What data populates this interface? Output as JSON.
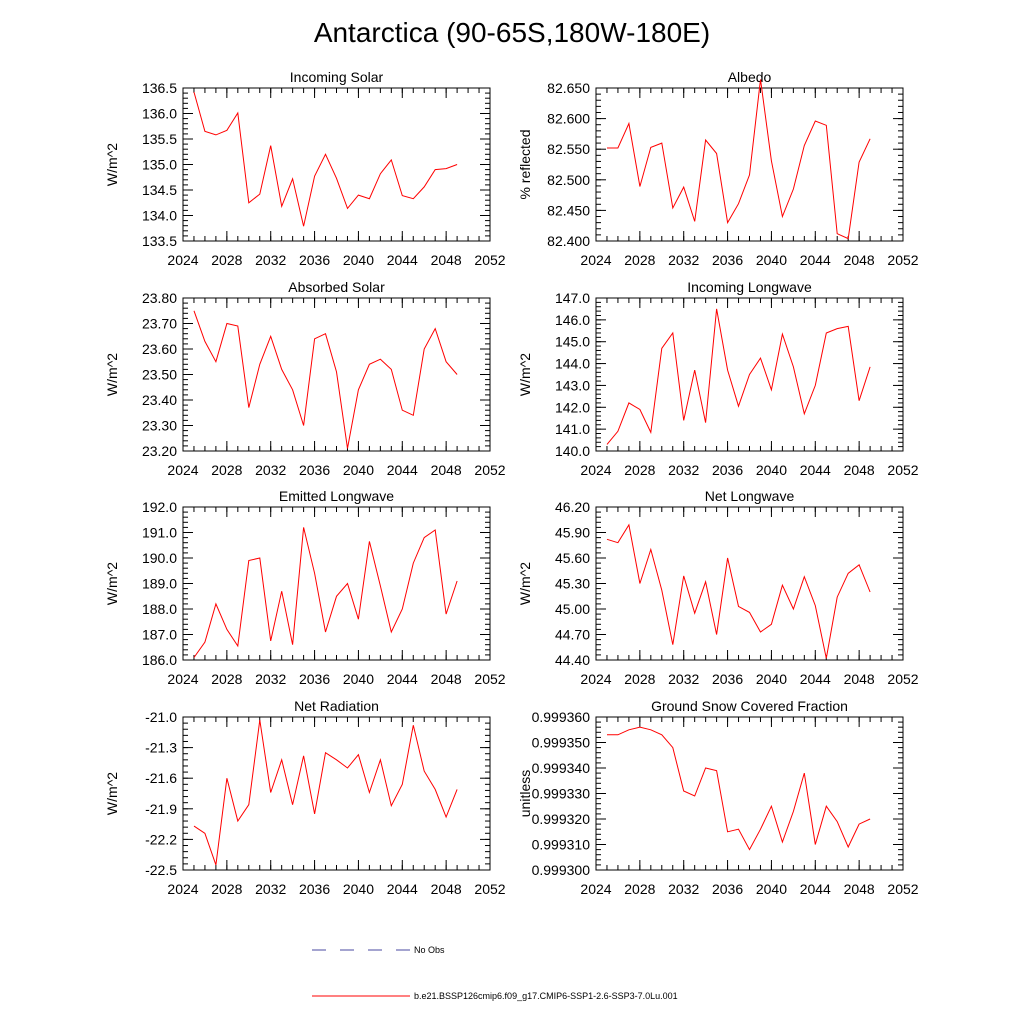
{
  "title": "Antarctica (90-65S,180W-180E)",
  "legend": {
    "obs_label": "No Obs",
    "obs_color": "#4a4aa0",
    "model_label": "b.e21.BSSP126cmip6.f09_g17.CMIP6-SSP1-2.6-SSP3-7.0Lu.001",
    "model_color": "#ff0000"
  },
  "chart_data": [
    {
      "type": "line",
      "title": "Incoming Solar",
      "ylabel": "W/m^2",
      "xlim": [
        2024,
        2052
      ],
      "xticks": [
        "2024",
        "2028",
        "2032",
        "2036",
        "2040",
        "2044",
        "2048",
        "2052"
      ],
      "ylim": [
        133.5,
        136.5
      ],
      "yticks": [
        "133.5",
        "134.0",
        "134.5",
        "135.0",
        "135.5",
        "136.0",
        "136.5"
      ],
      "yminor": 0.1,
      "x": [
        2025,
        2026,
        2027,
        2028,
        2029,
        2030,
        2031,
        2032,
        2033,
        2034,
        2035,
        2036,
        2037,
        2038,
        2039,
        2040,
        2041,
        2042,
        2043,
        2044,
        2045,
        2046,
        2047,
        2048,
        2049
      ],
      "values": [
        136.42,
        135.65,
        135.58,
        135.67,
        136.01,
        134.25,
        134.42,
        135.37,
        134.18,
        134.72,
        133.79,
        134.77,
        135.2,
        134.73,
        134.14,
        134.4,
        134.33,
        134.82,
        135.09,
        134.39,
        134.33,
        134.56,
        134.9,
        134.92,
        135.0
      ]
    },
    {
      "type": "line",
      "title": "Albedo",
      "ylabel": "% reflected",
      "xlim": [
        2024,
        2052
      ],
      "xticks": [
        "2024",
        "2028",
        "2032",
        "2036",
        "2040",
        "2044",
        "2048",
        "2052"
      ],
      "ylim": [
        82.4,
        82.65
      ],
      "yticks": [
        "82.400",
        "82.450",
        "82.500",
        "82.550",
        "82.600",
        "82.650"
      ],
      "yminor": 0.01,
      "x": [
        2025,
        2026,
        2027,
        2028,
        2029,
        2030,
        2031,
        2032,
        2033,
        2034,
        2035,
        2036,
        2037,
        2038,
        2039,
        2040,
        2041,
        2042,
        2043,
        2044,
        2045,
        2046,
        2047,
        2048,
        2049
      ],
      "values": [
        82.552,
        82.552,
        82.592,
        82.489,
        82.553,
        82.56,
        82.454,
        82.488,
        82.432,
        82.565,
        82.543,
        82.43,
        82.461,
        82.508,
        82.664,
        82.531,
        82.44,
        82.485,
        82.556,
        82.596,
        82.589,
        82.412,
        82.404,
        82.529,
        82.567
      ]
    },
    {
      "type": "line",
      "title": "Absorbed Solar",
      "ylabel": "W/m^2",
      "xlim": [
        2024,
        2052
      ],
      "xticks": [
        "2024",
        "2028",
        "2032",
        "2036",
        "2040",
        "2044",
        "2048",
        "2052"
      ],
      "ylim": [
        23.2,
        23.8
      ],
      "yticks": [
        "23.20",
        "23.30",
        "23.40",
        "23.50",
        "23.60",
        "23.70",
        "23.80"
      ],
      "yminor": 0.02,
      "x": [
        2025,
        2026,
        2027,
        2028,
        2029,
        2030,
        2031,
        2032,
        2033,
        2034,
        2035,
        2036,
        2037,
        2038,
        2039,
        2040,
        2041,
        2042,
        2043,
        2044,
        2045,
        2046,
        2047,
        2048,
        2049
      ],
      "values": [
        23.75,
        23.63,
        23.55,
        23.7,
        23.69,
        23.37,
        23.54,
        23.65,
        23.52,
        23.44,
        23.3,
        23.64,
        23.66,
        23.51,
        23.21,
        23.44,
        23.54,
        23.56,
        23.52,
        23.36,
        23.34,
        23.6,
        23.68,
        23.55,
        23.5
      ]
    },
    {
      "type": "line",
      "title": "Incoming Longwave",
      "ylabel": "W/m^2",
      "xlim": [
        2024,
        2052
      ],
      "xticks": [
        "2024",
        "2028",
        "2032",
        "2036",
        "2040",
        "2044",
        "2048",
        "2052"
      ],
      "ylim": [
        140.0,
        147.0
      ],
      "yticks": [
        "140.0",
        "141.0",
        "142.0",
        "143.0",
        "144.0",
        "145.0",
        "146.0",
        "147.0"
      ],
      "yminor": 0.2,
      "x": [
        2025,
        2026,
        2027,
        2028,
        2029,
        2030,
        2031,
        2032,
        2033,
        2034,
        2035,
        2036,
        2037,
        2038,
        2039,
        2040,
        2041,
        2042,
        2043,
        2044,
        2045,
        2046,
        2047,
        2048,
        2049
      ],
      "values": [
        140.3,
        140.9,
        142.2,
        141.9,
        140.85,
        144.7,
        145.4,
        141.4,
        143.7,
        141.3,
        146.5,
        143.7,
        142.05,
        143.5,
        144.25,
        142.8,
        145.35,
        143.85,
        141.7,
        143.0,
        145.4,
        145.6,
        145.7,
        142.3,
        143.85
      ]
    },
    {
      "type": "line",
      "title": "Emitted Longwave",
      "ylabel": "W/m^2",
      "xlim": [
        2024,
        2052
      ],
      "xticks": [
        "2024",
        "2028",
        "2032",
        "2036",
        "2040",
        "2044",
        "2048",
        "2052"
      ],
      "ylim": [
        186.0,
        192.0
      ],
      "yticks": [
        "186.0",
        "187.0",
        "188.0",
        "189.0",
        "190.0",
        "191.0",
        "192.0"
      ],
      "yminor": 0.2,
      "x": [
        2025,
        2026,
        2027,
        2028,
        2029,
        2030,
        2031,
        2032,
        2033,
        2034,
        2035,
        2036,
        2037,
        2038,
        2039,
        2040,
        2041,
        2042,
        2043,
        2044,
        2045,
        2046,
        2047,
        2048,
        2049
      ],
      "values": [
        186.1,
        186.7,
        188.2,
        187.2,
        186.55,
        189.9,
        190.0,
        186.75,
        188.7,
        186.6,
        191.2,
        189.4,
        187.1,
        188.5,
        189.0,
        187.6,
        190.65,
        188.9,
        187.1,
        188.0,
        189.8,
        190.8,
        191.1,
        187.8,
        189.1
      ]
    },
    {
      "type": "line",
      "title": "Net Longwave",
      "ylabel": "W/m^2",
      "xlim": [
        2024,
        2052
      ],
      "xticks": [
        "2024",
        "2028",
        "2032",
        "2036",
        "2040",
        "2044",
        "2048",
        "2052"
      ],
      "ylim": [
        44.4,
        46.2
      ],
      "yticks": [
        "44.40",
        "44.70",
        "45.00",
        "45.30",
        "45.60",
        "45.90",
        "46.20"
      ],
      "yminor": 0.06,
      "x": [
        2025,
        2026,
        2027,
        2028,
        2029,
        2030,
        2031,
        2032,
        2033,
        2034,
        2035,
        2036,
        2037,
        2038,
        2039,
        2040,
        2041,
        2042,
        2043,
        2044,
        2045,
        2046,
        2047,
        2048,
        2049
      ],
      "values": [
        45.82,
        45.78,
        45.99,
        45.3,
        45.7,
        45.22,
        44.58,
        45.39,
        44.95,
        45.32,
        44.7,
        45.6,
        45.03,
        44.96,
        44.73,
        44.82,
        45.28,
        45.0,
        45.38,
        45.04,
        44.42,
        45.14,
        45.42,
        45.52,
        45.2
      ]
    },
    {
      "type": "line",
      "title": "Net Radiation",
      "ylabel": "W/m^2",
      "xlim": [
        2024,
        2052
      ],
      "xticks": [
        "2024",
        "2028",
        "2032",
        "2036",
        "2040",
        "2044",
        "2048",
        "2052"
      ],
      "ylim": [
        -22.5,
        -21.0
      ],
      "yticks": [
        "-22.5",
        "-22.2",
        "-21.9",
        "-21.6",
        "-21.3",
        "-21.0"
      ],
      "yminor": 0.06,
      "x": [
        2025,
        2026,
        2027,
        2028,
        2029,
        2030,
        2031,
        2032,
        2033,
        2034,
        2035,
        2036,
        2037,
        2038,
        2039,
        2040,
        2041,
        2042,
        2043,
        2044,
        2045,
        2046,
        2047,
        2048,
        2049
      ],
      "values": [
        -22.07,
        -22.14,
        -22.45,
        -21.6,
        -22.02,
        -21.86,
        -21.03,
        -21.74,
        -21.42,
        -21.86,
        -21.38,
        -21.95,
        -21.35,
        -21.42,
        -21.5,
        -21.37,
        -21.74,
        -21.42,
        -21.87,
        -21.66,
        -21.08,
        -21.53,
        -21.71,
        -21.98,
        -21.71
      ]
    },
    {
      "type": "line",
      "title": "Ground Snow Covered Fraction",
      "ylabel": "unitless",
      "xlim": [
        2024,
        2052
      ],
      "xticks": [
        "2024",
        "2028",
        "2032",
        "2036",
        "2040",
        "2044",
        "2048",
        "2052"
      ],
      "ylim": [
        0.9993,
        0.99936
      ],
      "yticks": [
        "0.999300",
        "0.999310",
        "0.999320",
        "0.999330",
        "0.999340",
        "0.999350",
        "0.999360"
      ],
      "yminor": 2e-06,
      "x": [
        2025,
        2026,
        2027,
        2028,
        2029,
        2030,
        2031,
        2032,
        2033,
        2034,
        2035,
        2036,
        2037,
        2038,
        2039,
        2040,
        2041,
        2042,
        2043,
        2044,
        2045,
        2046,
        2047,
        2048,
        2049
      ],
      "values": [
        0.999353,
        0.999353,
        0.999355,
        0.999356,
        0.999355,
        0.999353,
        0.999348,
        0.999331,
        0.999329,
        0.99934,
        0.999339,
        0.999315,
        0.999316,
        0.999308,
        0.999316,
        0.999325,
        0.999311,
        0.999323,
        0.999338,
        0.99931,
        0.999325,
        0.999319,
        0.999309,
        0.999318,
        0.99932
      ]
    }
  ]
}
